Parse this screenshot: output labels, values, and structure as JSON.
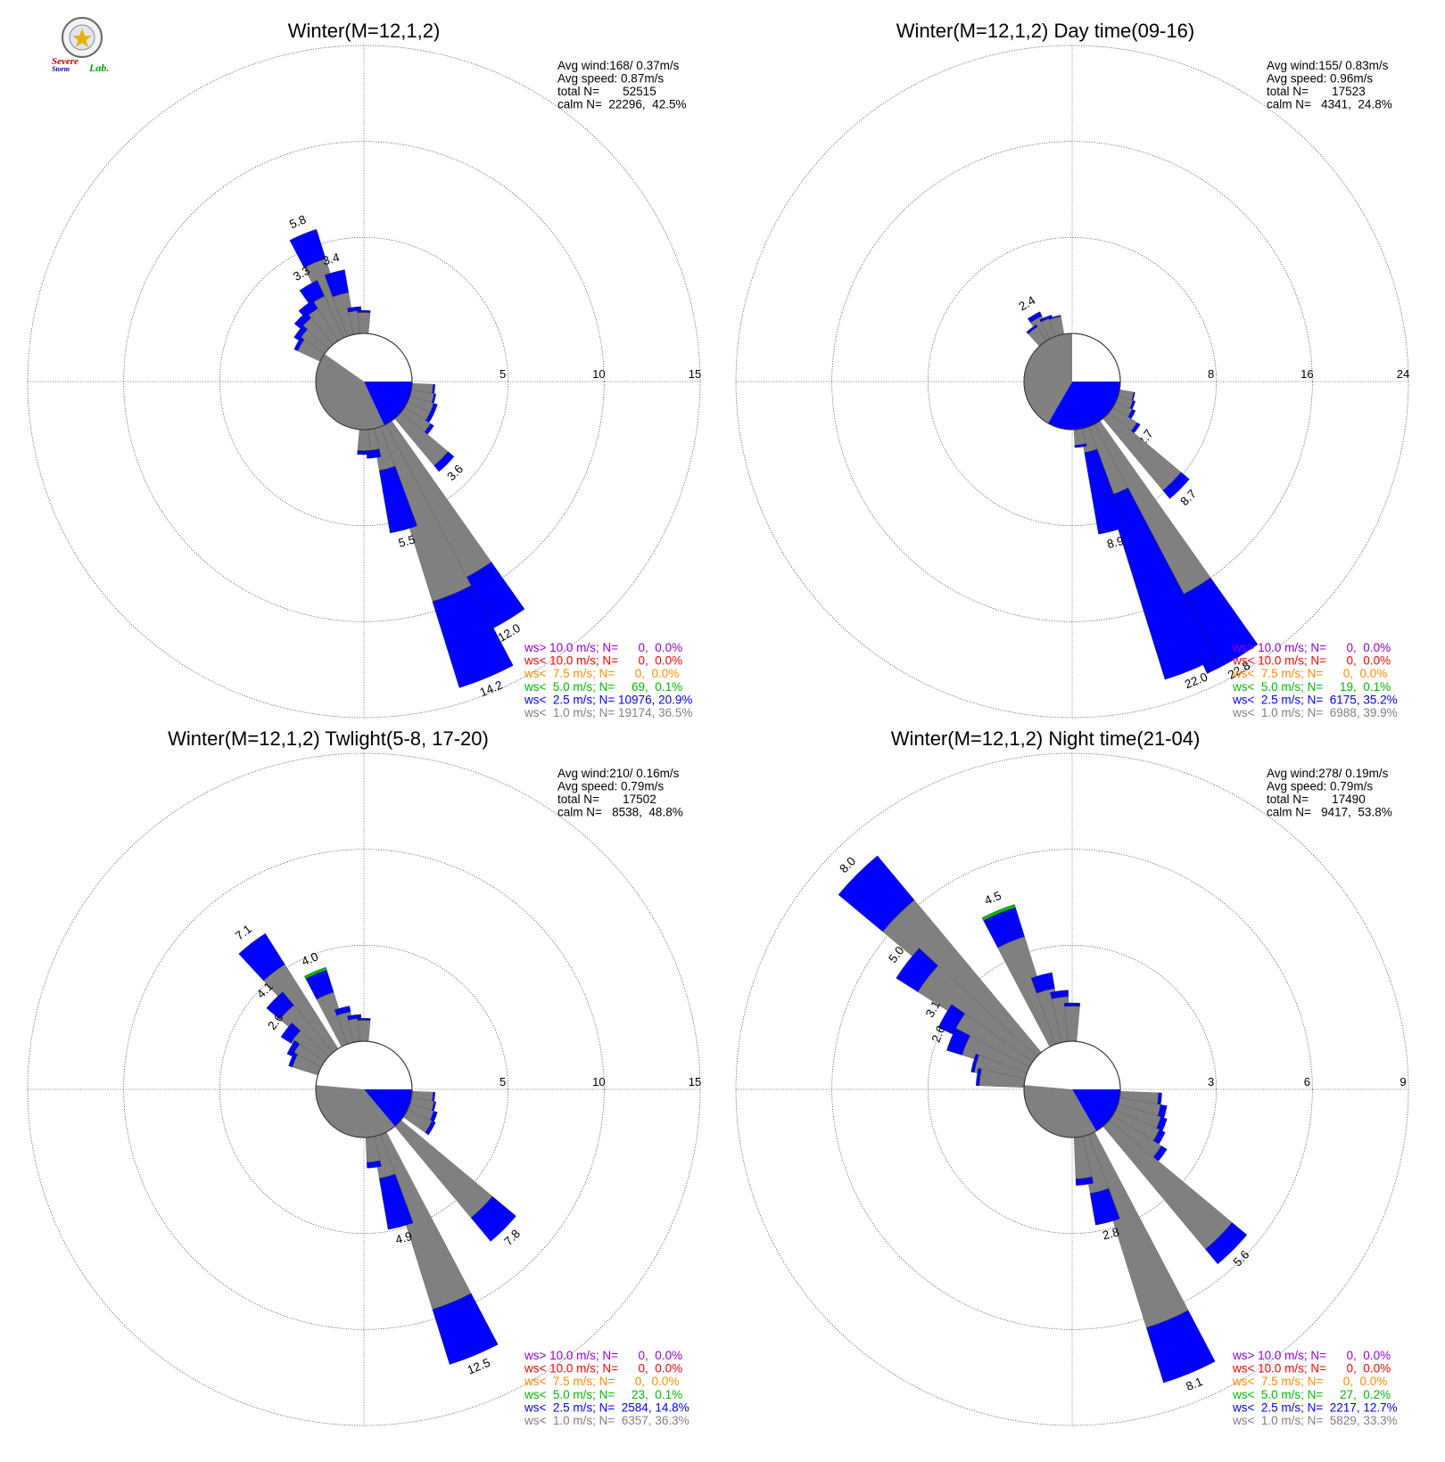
{
  "logo": {
    "line1": "Severe",
    "line2": "Storm",
    "line3": "Lab."
  },
  "chart_data": [
    {
      "type": "wind-rose",
      "title": "Winter(M=12,1,2)",
      "ring_ticks": [
        5,
        10,
        15
      ],
      "rmax": 15,
      "stats": {
        "avg_wind": "Avg wind:168/ 0.37m/s",
        "avg_speed": "Avg speed: 0.87m/s",
        "total": "total N=       52515",
        "calm": "calm N=  22296,  42.5%"
      },
      "calm_pie": [
        {
          "start": 90,
          "end": 155,
          "color": "#0000ff"
        },
        {
          "start": 155,
          "end": 305,
          "color": "#808080"
        }
      ],
      "legend": [
        {
          "text": "ws> 10.0 m/s; N=      0,  0.0%",
          "color": "#9400d3"
        },
        {
          "text": "ws< 10.0 m/s; N=      0,  0.0%",
          "color": "#ff0000"
        },
        {
          "text": "ws<  7.5 m/s; N=      0,  0.0%",
          "color": "#ff8c00"
        },
        {
          "text": "ws<  5.0 m/s; N=     69,  0.1%",
          "color": "#00bb00"
        },
        {
          "text": "ws<  2.5 m/s; N= 10976, 20.9%",
          "color": "#0000ff"
        },
        {
          "text": "ws<  1.0 m/s; N= 19174, 36.5%",
          "color": "#808080"
        }
      ],
      "bars": [
        {
          "dir": 337.5,
          "gray": 4.2,
          "blue": 5.8,
          "label": "5.8"
        },
        {
          "dir": 345,
          "gray": 2.2,
          "blue": 3.4,
          "label": "3.4"
        },
        {
          "dir": 330,
          "gray": 2.4,
          "blue": 3.3,
          "label": "3.3"
        },
        {
          "dir": 322.5,
          "gray": 2.0,
          "blue": 2.5
        },
        {
          "dir": 315,
          "gray": 1.8,
          "blue": 2.2
        },
        {
          "dir": 307.5,
          "gray": 1.5,
          "blue": 1.8
        },
        {
          "dir": 300,
          "gray": 1.3,
          "blue": 1.5
        },
        {
          "dir": 352.5,
          "gray": 1.2,
          "blue": 1.4
        },
        {
          "dir": 0,
          "gray": 1.1,
          "blue": 1.2
        },
        {
          "dir": 97.5,
          "gray": 1.1,
          "blue": 1.2
        },
        {
          "dir": 105,
          "gray": 1.2,
          "blue": 1.3
        },
        {
          "dir": 112.5,
          "gray": 1.3,
          "blue": 1.5
        },
        {
          "dir": 120,
          "gray": 1.3,
          "blue": 1.5
        },
        {
          "dir": 127.5,
          "gray": 1.6,
          "blue": 1.8
        },
        {
          "dir": 135,
          "gray": 3.2,
          "blue": 3.6,
          "label": "3.6"
        },
        {
          "dir": 150,
          "gray": 9.0,
          "blue": 12.0,
          "label": "12.0"
        },
        {
          "dir": 157.5,
          "gray": 9.5,
          "blue": 14.2,
          "label": "14.2"
        },
        {
          "dir": 165,
          "gray": 2.2,
          "blue": 5.5,
          "label": "5.5"
        },
        {
          "dir": 172.5,
          "gray": 1.1,
          "blue": 1.5
        },
        {
          "dir": 180,
          "gray": 1.1,
          "blue": 1.3
        }
      ]
    },
    {
      "type": "wind-rose",
      "title": "Winter(M=12,1,2) Day time(09-16)",
      "ring_ticks": [
        8,
        16,
        24
      ],
      "rmax": 24,
      "stats": {
        "avg_wind": "Avg wind:155/ 0.83m/s",
        "avg_speed": "Avg speed: 0.96m/s",
        "total": "total N=       17523",
        "calm": "calm N=   4341,  24.8%"
      },
      "calm_pie": [
        {
          "start": 90,
          "end": 210,
          "color": "#0000ff"
        },
        {
          "start": 210,
          "end": 360,
          "color": "#808080"
        }
      ],
      "legend": [
        {
          "text": "ws> 10.0 m/s; N=      0,  0.0%",
          "color": "#9400d3"
        },
        {
          "text": "ws< 10.0 m/s; N=      0,  0.0%",
          "color": "#ff0000"
        },
        {
          "text": "ws<  7.5 m/s; N=      0,  0.0%",
          "color": "#ff8c00"
        },
        {
          "text": "ws<  5.0 m/s; N=     19,  0.1%",
          "color": "#00bb00"
        },
        {
          "text": "ws<  2.5 m/s; N=  6175, 35.2%",
          "color": "#0000ff"
        },
        {
          "text": "ws<  1.0 m/s; N=  6988, 39.9%",
          "color": "#808080"
        }
      ],
      "bars": [
        {
          "dir": 330,
          "gray": 2.0,
          "blue": 2.4,
          "label": "2.4"
        },
        {
          "dir": 337.5,
          "gray": 1.6,
          "blue": 1.8
        },
        {
          "dir": 345,
          "gray": 1.5,
          "blue": 1.6
        },
        {
          "dir": 322.5,
          "gray": 1.4,
          "blue": 1.6
        },
        {
          "dir": 105,
          "gray": 1.2,
          "blue": 1.3
        },
        {
          "dir": 112.5,
          "gray": 1.3,
          "blue": 1.5
        },
        {
          "dir": 120,
          "gray": 1.5,
          "blue": 1.8
        },
        {
          "dir": 127.5,
          "gray": 2.4,
          "blue": 2.7,
          "label": "2.7"
        },
        {
          "dir": 135,
          "gray": 7.8,
          "blue": 8.7,
          "label": "8.7"
        },
        {
          "dir": 150,
          "gray": 16.0,
          "blue": 22.8,
          "label": "22.8"
        },
        {
          "dir": 157.5,
          "gray": 6.0,
          "blue": 22.0,
          "label": "22.0"
        },
        {
          "dir": 165,
          "gray": 2.0,
          "blue": 8.9,
          "label": "8.9"
        },
        {
          "dir": 172.5,
          "gray": 1.3,
          "blue": 1.5
        }
      ]
    },
    {
      "type": "wind-rose",
      "title": "Winter(M=12,1,2) Twlight(5-8, 17-20)",
      "ring_ticks": [
        5,
        10,
        15
      ],
      "rmax": 15,
      "stats": {
        "avg_wind": "Avg wind:210/ 0.16m/s",
        "avg_speed": "Avg speed: 0.79m/s",
        "total": "total N=       17502",
        "calm": "calm N=   8538,  48.8%"
      },
      "calm_pie": [
        {
          "start": 90,
          "end": 140,
          "color": "#0000ff"
        },
        {
          "start": 140,
          "end": 275,
          "color": "#808080"
        }
      ],
      "legend": [
        {
          "text": "ws> 10.0 m/s; N=      0,  0.0%",
          "color": "#9400d3"
        },
        {
          "text": "ws< 10.0 m/s; N=      0,  0.0%",
          "color": "#ff0000"
        },
        {
          "text": "ws<  7.5 m/s; N=      0,  0.0%",
          "color": "#ff8c00"
        },
        {
          "text": "ws<  5.0 m/s; N=     23,  0.1%",
          "color": "#00bb00"
        },
        {
          "text": "ws<  2.5 m/s; N=  2584, 14.8%",
          "color": "#0000ff"
        },
        {
          "text": "ws<  1.0 m/s; N=  6357, 36.3%",
          "color": "#808080"
        }
      ],
      "bars": [
        {
          "dir": 322.5,
          "gray": 5.2,
          "blue": 7.1,
          "label": "7.1"
        },
        {
          "dir": 337.5,
          "gray": 2.8,
          "blue": 4.0,
          "label": "4.0",
          "green": 0.15
        },
        {
          "dir": 315,
          "gray": 3.2,
          "blue": 4.1,
          "label": "4.1"
        },
        {
          "dir": 307.5,
          "gray": 2.0,
          "blue": 2.6,
          "label": "2.6"
        },
        {
          "dir": 300,
          "gray": 1.6,
          "blue": 1.9
        },
        {
          "dir": 292.5,
          "gray": 1.4,
          "blue": 1.6
        },
        {
          "dir": 345,
          "gray": 1.6,
          "blue": 1.9
        },
        {
          "dir": 352.5,
          "gray": 1.2,
          "blue": 1.4
        },
        {
          "dir": 0,
          "gray": 1.1,
          "blue": 1.2
        },
        {
          "dir": 97.5,
          "gray": 1.1,
          "blue": 1.2
        },
        {
          "dir": 105,
          "gray": 1.2,
          "blue": 1.3
        },
        {
          "dir": 112.5,
          "gray": 1.3,
          "blue": 1.5
        },
        {
          "dir": 120,
          "gray": 1.4,
          "blue": 1.6
        },
        {
          "dir": 135,
          "gray": 6.2,
          "blue": 7.8,
          "label": "7.8"
        },
        {
          "dir": 157.5,
          "gray": 9.5,
          "blue": 12.5,
          "label": "12.5"
        },
        {
          "dir": 165,
          "gray": 2.2,
          "blue": 4.9,
          "label": "4.9"
        },
        {
          "dir": 172.5,
          "gray": 1.3,
          "blue": 1.6
        }
      ]
    },
    {
      "type": "wind-rose",
      "title": "Winter(M=12,1,2) Night time(21-04)",
      "ring_ticks": [
        3,
        6,
        9
      ],
      "rmax": 9,
      "stats": {
        "avg_wind": "Avg wind:278/ 0.19m/s",
        "avg_speed": "Avg speed: 0.79m/s",
        "total": "total N=       17490",
        "calm": "calm N=   9417,  53.8%"
      },
      "calm_pie": [
        {
          "start": 90,
          "end": 150,
          "color": "#0000ff"
        },
        {
          "start": 150,
          "end": 275,
          "color": "#808080"
        }
      ],
      "legend": [
        {
          "text": "ws> 10.0 m/s; N=      0,  0.0%",
          "color": "#9400d3"
        },
        {
          "text": "ws< 10.0 m/s; N=      0,  0.0%",
          "color": "#ff0000"
        },
        {
          "text": "ws<  7.5 m/s; N=      0,  0.0%",
          "color": "#ff8c00"
        },
        {
          "text": "ws<  5.0 m/s; N=     27,  0.2%",
          "color": "#00bb00"
        },
        {
          "text": "ws<  2.5 m/s; N=  2217, 12.7%",
          "color": "#0000ff"
        },
        {
          "text": "ws<  1.0 m/s; N=  5829, 33.3%",
          "color": "#808080"
        }
      ],
      "bars": [
        {
          "dir": 315,
          "gray": 6.2,
          "blue": 8.0,
          "label": "8.0"
        },
        {
          "dir": 337.5,
          "gray": 3.5,
          "blue": 4.45,
          "label": "4.5",
          "green": 0.1
        },
        {
          "dir": 307.5,
          "gray": 4.2,
          "blue": 5.0,
          "label": "5.0"
        },
        {
          "dir": 300,
          "gray": 2.6,
          "blue": 3.1,
          "label": "3.1"
        },
        {
          "dir": 292.5,
          "gray": 2.1,
          "blue": 2.6,
          "label": "2.6"
        },
        {
          "dir": 285,
          "gray": 1.6,
          "blue": 1.7
        },
        {
          "dir": 277.5,
          "gray": 1.4,
          "blue": 1.5
        },
        {
          "dir": 345,
          "gray": 1.7,
          "blue": 2.2
        },
        {
          "dir": 352.5,
          "gray": 1.4,
          "blue": 1.6
        },
        {
          "dir": 0,
          "gray": 1.1,
          "blue": 1.2
        },
        {
          "dir": 97.5,
          "gray": 1.2,
          "blue": 1.3
        },
        {
          "dir": 105,
          "gray": 1.3,
          "blue": 1.5
        },
        {
          "dir": 112.5,
          "gray": 1.4,
          "blue": 1.6
        },
        {
          "dir": 120,
          "gray": 1.5,
          "blue": 1.7
        },
        {
          "dir": 127.5,
          "gray": 1.8,
          "blue": 2.0
        },
        {
          "dir": 135,
          "gray": 5.0,
          "blue": 5.6,
          "label": "5.6"
        },
        {
          "dir": 157.5,
          "gray": 6.3,
          "blue": 8.1,
          "label": "8.1"
        },
        {
          "dir": 165,
          "gray": 1.8,
          "blue": 2.8,
          "label": "2.8"
        },
        {
          "dir": 172.5,
          "gray": 1.3,
          "blue": 1.5
        }
      ]
    }
  ]
}
